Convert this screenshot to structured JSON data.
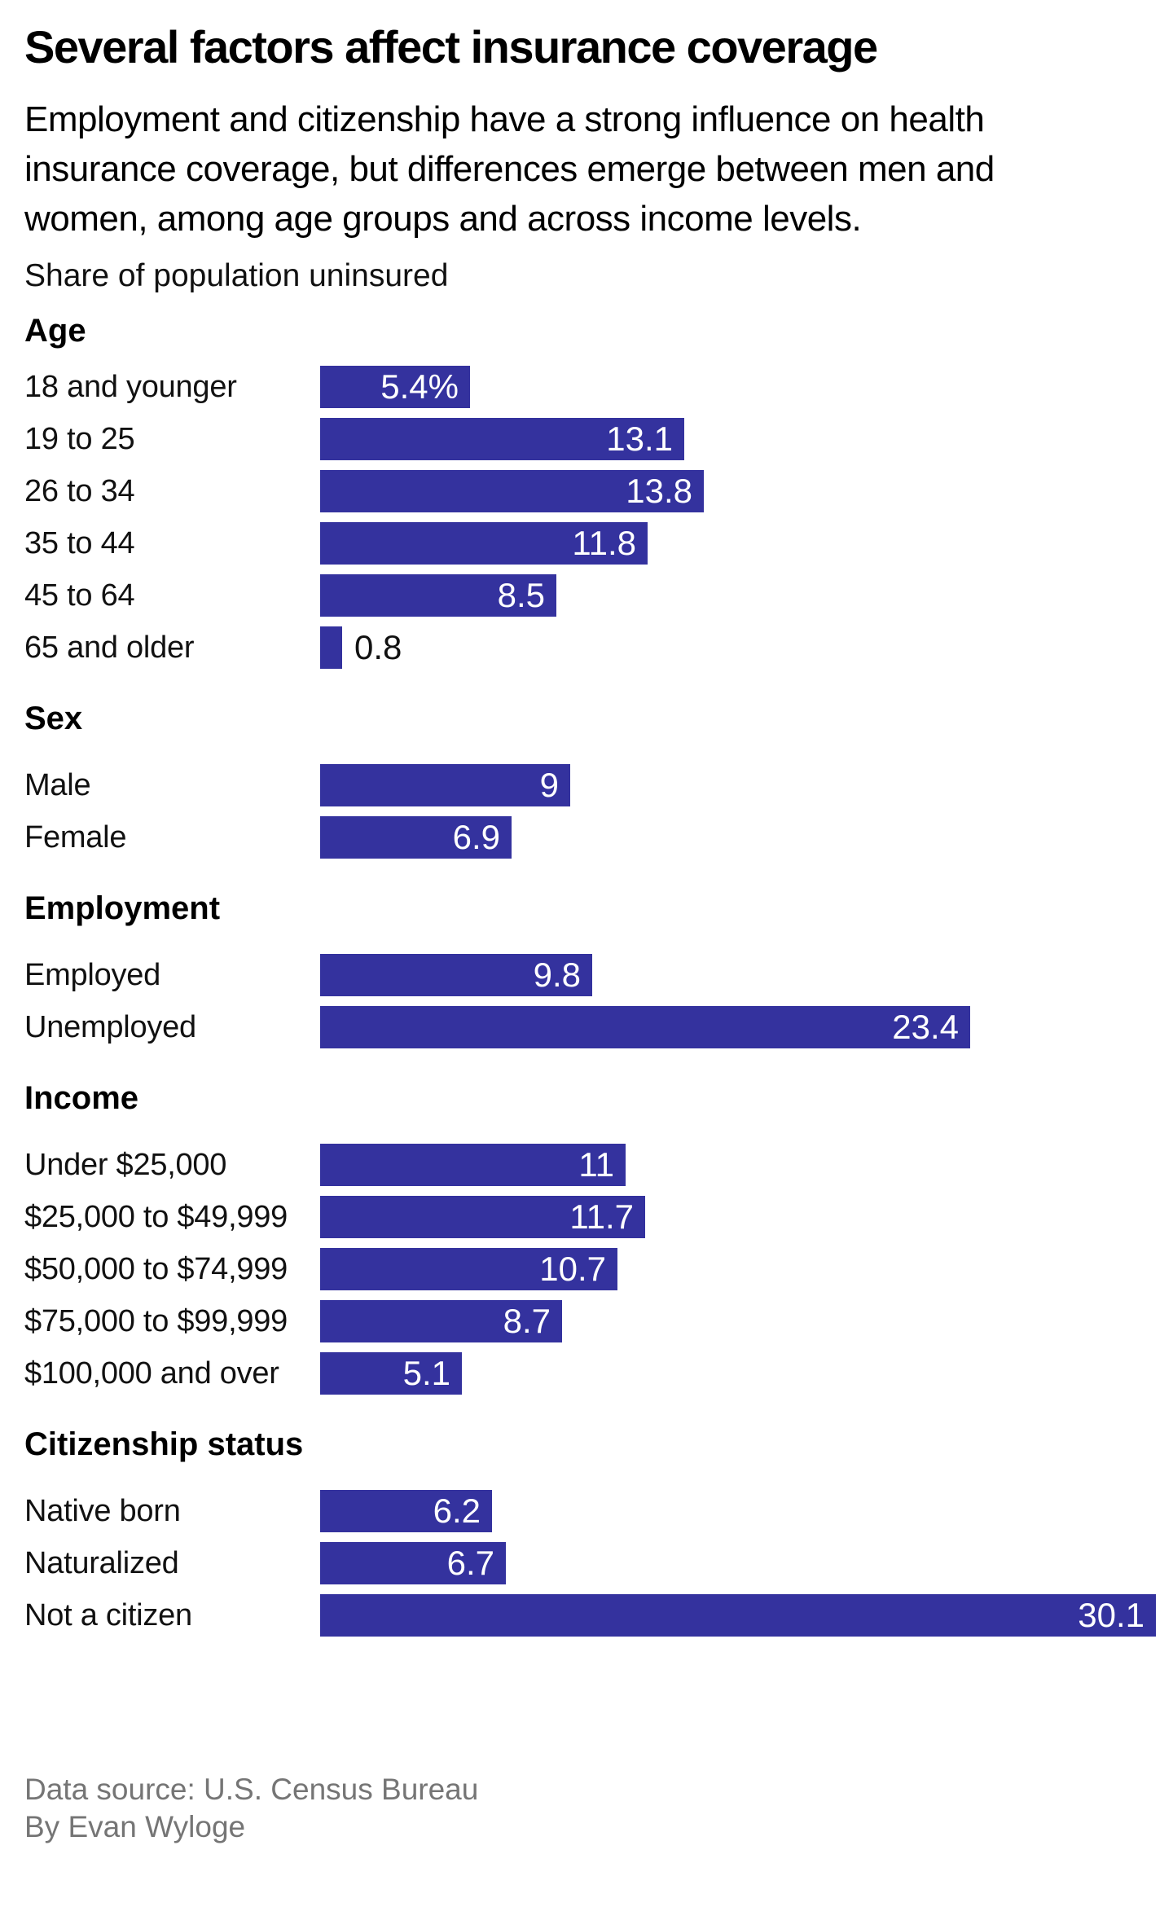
{
  "header": {
    "title": "Several factors affect insurance coverage",
    "subtitle": "Employment and citizenship have a strong influence on health\ninsurance coverage, but differences emerge between men and\nwomen, among age groups and across income levels."
  },
  "note": "Share of population uninsured",
  "chart_data": {
    "type": "bar",
    "orientation": "horizontal",
    "title": "Several factors affect insurance coverage",
    "subtitle": "Employment and citizenship have a strong influence on health insurance coverage, but differences emerge between men and women, among age groups and across income levels.",
    "axis_label": "Share of population uninsured",
    "unit": "percent",
    "xlim": [
      0,
      30.1
    ],
    "grid": false,
    "legend": false,
    "bar_color": "#34329E",
    "value_label_color_inside": "#ffffff",
    "value_label_color_outside": "#111111",
    "groups": [
      {
        "header": "Age",
        "rows": [
          {
            "label": "18 and younger",
            "value": 5.4,
            "display": "5.4%"
          },
          {
            "label": "19 to 25",
            "value": 13.1,
            "display": "13.1"
          },
          {
            "label": "26 to 34",
            "value": 13.8,
            "display": "13.8"
          },
          {
            "label": "35 to 44",
            "value": 11.8,
            "display": "11.8"
          },
          {
            "label": "45 to 64",
            "value": 8.5,
            "display": "8.5"
          },
          {
            "label": "65 and older",
            "value": 0.8,
            "display": "0.8"
          }
        ]
      },
      {
        "header": "Sex",
        "rows": [
          {
            "label": "Male",
            "value": 9,
            "display": "9"
          },
          {
            "label": "Female",
            "value": 6.9,
            "display": "6.9"
          }
        ]
      },
      {
        "header": "Employment",
        "rows": [
          {
            "label": "Employed",
            "value": 9.8,
            "display": "9.8"
          },
          {
            "label": "Unemployed",
            "value": 23.4,
            "display": "23.4"
          }
        ]
      },
      {
        "header": "Income",
        "rows": [
          {
            "label": "Under $25,000",
            "value": 11,
            "display": "11"
          },
          {
            "label": "$25,000 to $49,999",
            "value": 11.7,
            "display": "11.7"
          },
          {
            "label": "$50,000 to $74,999",
            "value": 10.7,
            "display": "10.7"
          },
          {
            "label": "$75,000 to $99,999",
            "value": 8.7,
            "display": "8.7"
          },
          {
            "label": "$100,000 and over",
            "value": 5.1,
            "display": "5.1"
          }
        ]
      },
      {
        "header": "Citizenship status",
        "rows": [
          {
            "label": "Native born",
            "value": 6.2,
            "display": "6.2"
          },
          {
            "label": "Naturalized",
            "value": 6.7,
            "display": "6.7"
          },
          {
            "label": "Not a citizen",
            "value": 30.1,
            "display": "30.1"
          }
        ]
      }
    ]
  },
  "footer": {
    "source_line": "Data source: U.S. Census Bureau",
    "byline": "By Evan Wyloge"
  }
}
